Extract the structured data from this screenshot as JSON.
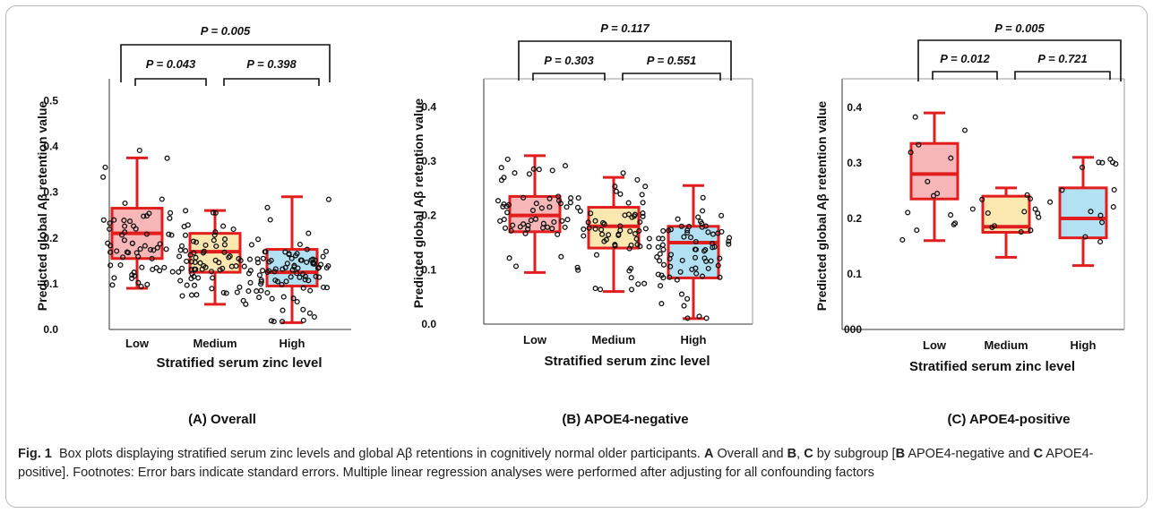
{
  "chart_data": [
    {
      "type": "box",
      "panel_title": "(A) Overall",
      "xlabel": "Stratified serum zinc level",
      "ylabel": "Predicted global Aβ retention value",
      "categories": [
        "Low",
        "Medium",
        "High"
      ],
      "y_ticks": [
        "0.0",
        "0.1",
        "0.2",
        "0.3",
        "0.4",
        "0.5"
      ],
      "ylim": [
        0,
        0.54
      ],
      "box_colors": [
        "#f6a9ab",
        "#fae3a2",
        "#a6dcf2"
      ],
      "boxes": [
        {
          "q1": 0.155,
          "median": 0.21,
          "q3": 0.265,
          "lower": 0.09,
          "upper": 0.375
        },
        {
          "q1": 0.125,
          "median": 0.17,
          "q3": 0.21,
          "lower": 0.055,
          "upper": 0.26
        },
        {
          "q1": 0.095,
          "median": 0.125,
          "q3": 0.175,
          "lower": 0.015,
          "upper": 0.29
        }
      ],
      "comparisons": [
        {
          "label": "P = 0.005",
          "from": 0,
          "to": 2
        },
        {
          "label": "P = 0.043",
          "from": 0,
          "to": 1
        },
        {
          "label": "P = 0.398",
          "from": 1,
          "to": 2
        }
      ],
      "point_counts": [
        62,
        75,
        85
      ],
      "seed": 11
    },
    {
      "type": "box",
      "panel_title": "(B) APOE4-negative",
      "xlabel": "Stratified serum zinc level",
      "ylabel": "Predicted global Aβ retention value",
      "categories": [
        "Low",
        "Medium",
        "High"
      ],
      "y_ticks": [
        "0.0",
        "0.1",
        "0.2",
        "0.3",
        "0.4"
      ],
      "ylim": [
        0,
        0.445
      ],
      "box_colors": [
        "#f6a9ab",
        "#fae3a2",
        "#a6dcf2"
      ],
      "boxes": [
        {
          "q1": 0.17,
          "median": 0.2,
          "q3": 0.235,
          "lower": 0.095,
          "upper": 0.31
        },
        {
          "q1": 0.14,
          "median": 0.18,
          "q3": 0.215,
          "lower": 0.06,
          "upper": 0.27
        },
        {
          "q1": 0.085,
          "median": 0.15,
          "q3": 0.18,
          "lower": 0.01,
          "upper": 0.255
        }
      ],
      "comparisons": [
        {
          "label": "P = 0.117",
          "from": 0,
          "to": 2
        },
        {
          "label": "P = 0.303",
          "from": 0,
          "to": 1
        },
        {
          "label": "P = 0.551",
          "from": 1,
          "to": 2
        }
      ],
      "point_counts": [
        52,
        62,
        72
      ],
      "seed": 23
    },
    {
      "type": "box",
      "panel_title": "(C) APOE4-positive",
      "xlabel": "Stratified serum zinc level",
      "ylabel": "Predicted global Aβ retention value",
      "categories": [
        "Low",
        "Medium",
        "High"
      ],
      "y_ticks": [
        "000",
        "0.1",
        "0.2",
        "0.3",
        "0.4"
      ],
      "ylim": [
        0,
        0.445
      ],
      "box_colors": [
        "#f6a9ab",
        "#fae3a2",
        "#a6dcf2"
      ],
      "boxes": [
        {
          "q1": 0.235,
          "median": 0.28,
          "q3": 0.335,
          "lower": 0.16,
          "upper": 0.39
        },
        {
          "q1": 0.175,
          "median": 0.185,
          "q3": 0.24,
          "lower": 0.13,
          "upper": 0.255
        },
        {
          "q1": 0.165,
          "median": 0.2,
          "q3": 0.255,
          "lower": 0.115,
          "upper": 0.31
        }
      ],
      "comparisons": [
        {
          "label": "P = 0.005",
          "from": 0,
          "to": 2
        },
        {
          "label": "P = 0.012",
          "from": 0,
          "to": 1
        },
        {
          "label": "P = 0.721",
          "from": 1,
          "to": 2
        }
      ],
      "point_counts": [
        14,
        13,
        15
      ],
      "seed": 37
    }
  ],
  "caption": {
    "fig_label": "Fig. 1",
    "t1": "Box plots displaying stratified serum zinc levels and global Aβ retentions in cognitively normal older participants.",
    "a": "A",
    "t2": "Overall and",
    "b": "B",
    "c": "C",
    "t3": "by subgroup [",
    "b2": "B",
    "t4": "APOE4-negative and",
    "c2": "C",
    "t5": "APOE4-positive]. Footnotes: Error bars indicate standard errors. Multiple linear regression analyses were performed after adjusting for all confounding factors"
  }
}
